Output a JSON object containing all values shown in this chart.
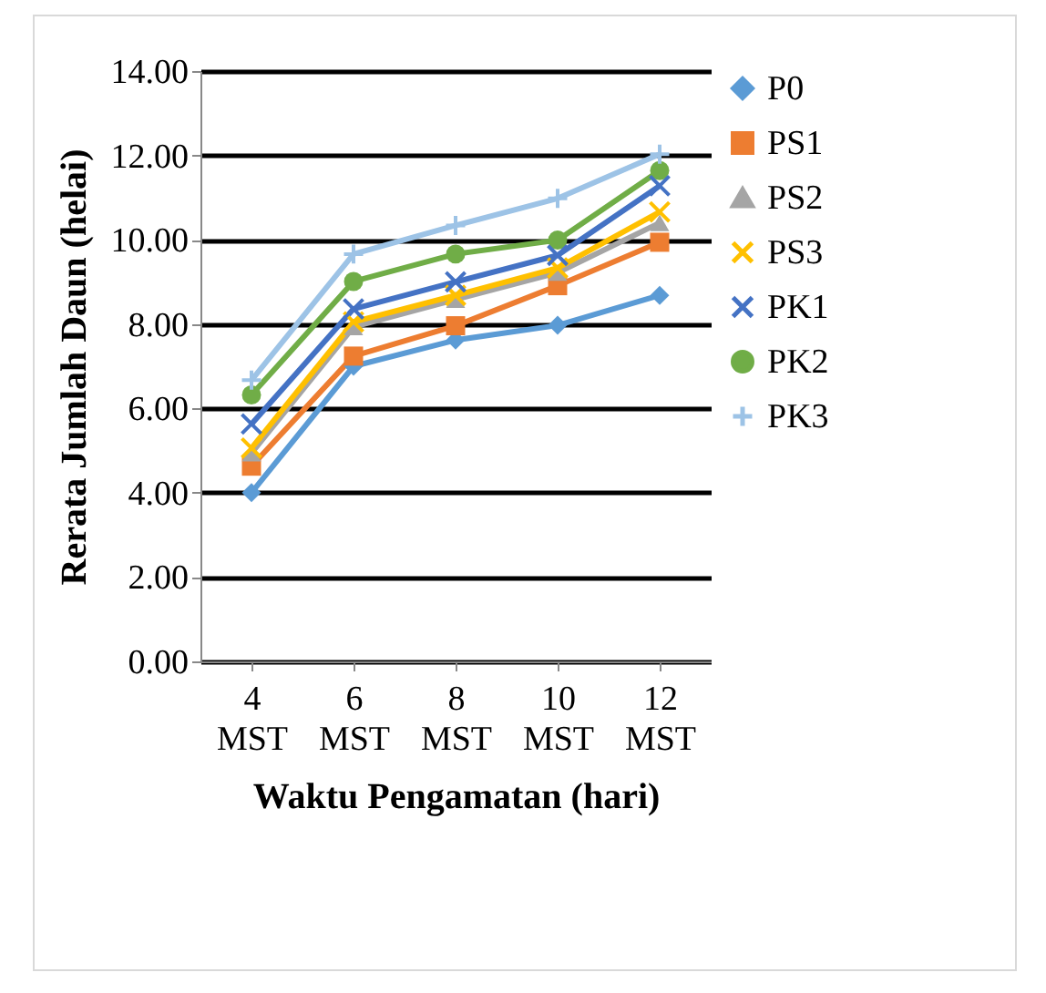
{
  "chart_data": {
    "type": "line",
    "xlabel": "Waktu Pengamatan (hari)",
    "ylabel": "Rerata Jumlah Daun (helai)",
    "categories": [
      "4 MST",
      "6 MST",
      "8 MST",
      "10 MST",
      "12 MST"
    ],
    "ylim": [
      0,
      14
    ],
    "yticks": [
      {
        "value": 0,
        "label": "0.00"
      },
      {
        "value": 2,
        "label": "2.00"
      },
      {
        "value": 4,
        "label": "4.00"
      },
      {
        "value": 6,
        "label": "6.00"
      },
      {
        "value": 8,
        "label": "8.00"
      },
      {
        "value": 10,
        "label": "10.00"
      },
      {
        "value": 12,
        "label": "12.00"
      },
      {
        "value": 14,
        "label": "14.00"
      }
    ],
    "grid": "y",
    "legend": "right",
    "line_style": "solid",
    "series": [
      {
        "name": "P0",
        "color": "#5b9bd5",
        "marker": "diamond",
        "values": [
          4.0,
          7.0,
          7.62,
          7.97,
          8.68
        ]
      },
      {
        "name": "PS1",
        "color": "#ed7d31",
        "marker": "square",
        "values": [
          4.63,
          7.24,
          7.96,
          8.91,
          9.94
        ]
      },
      {
        "name": "PS2",
        "color": "#a5a5a5",
        "marker": "triangle",
        "values": [
          4.94,
          7.93,
          8.58,
          9.22,
          10.4
        ]
      },
      {
        "name": "PS3",
        "color": "#ffc000",
        "marker": "cross",
        "values": [
          5.06,
          8.05,
          8.68,
          9.33,
          10.66
        ]
      },
      {
        "name": "PK1",
        "color": "#4472c4",
        "marker": "cross",
        "values": [
          5.63,
          8.36,
          9.0,
          9.63,
          11.28
        ]
      },
      {
        "name": "PK2",
        "color": "#70ad47",
        "marker": "circle",
        "values": [
          6.32,
          9.01,
          9.66,
          9.99,
          11.64
        ]
      },
      {
        "name": "PK3",
        "color": "#9dc3e6",
        "marker": "plus",
        "values": [
          6.67,
          9.66,
          10.34,
          10.98,
          12.03
        ]
      }
    ]
  }
}
